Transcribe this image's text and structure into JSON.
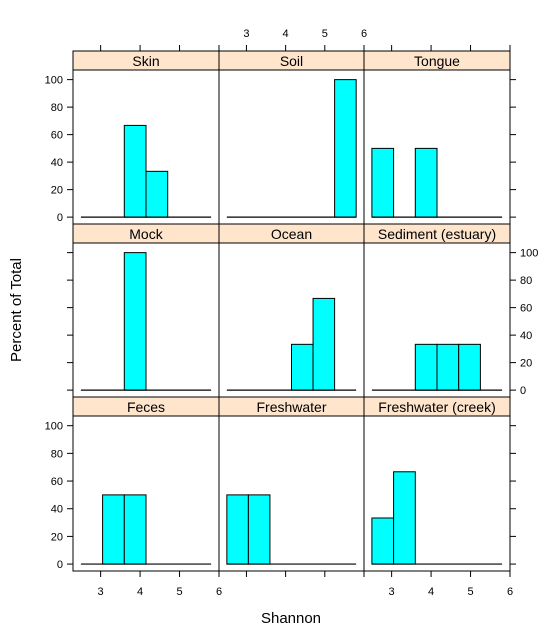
{
  "chart_data": {
    "type": "bar",
    "xlabel": "Shannon",
    "ylabel": "Percent of Total",
    "xlim": [
      2.3,
      6.0
    ],
    "ylim": [
      -5,
      107
    ],
    "x_ticks": [
      3,
      4,
      5,
      6
    ],
    "y_ticks": [
      0,
      20,
      40,
      60,
      80,
      100
    ],
    "bin_edges": [
      2.5,
      3.05,
      3.6,
      4.15,
      4.7,
      5.25,
      5.8
    ],
    "panels": [
      {
        "name": "Skin",
        "values": [
          0,
          0,
          66.7,
          33.3,
          0,
          0
        ]
      },
      {
        "name": "Soil",
        "values": [
          0,
          0,
          0,
          0,
          0,
          100
        ]
      },
      {
        "name": "Tongue",
        "values": [
          50,
          0,
          50,
          0,
          0,
          0
        ]
      },
      {
        "name": "Mock",
        "values": [
          0,
          0,
          100,
          0,
          0,
          0
        ]
      },
      {
        "name": "Ocean",
        "values": [
          0,
          0,
          0,
          33.3,
          66.7,
          0
        ]
      },
      {
        "name": "Sediment (estuary)",
        "values": [
          0,
          0,
          33.3,
          33.3,
          33.3,
          0
        ]
      },
      {
        "name": "Feces",
        "values": [
          0,
          50,
          50,
          0,
          0,
          0
        ]
      },
      {
        "name": "Freshwater",
        "values": [
          50,
          50,
          0,
          0,
          0,
          0
        ]
      },
      {
        "name": "Freshwater (creek)",
        "values": [
          33.3,
          66.7,
          0,
          0,
          0,
          0
        ]
      }
    ],
    "colors": {
      "bar_fill": "#00ffff",
      "strip_fill": "#ffe5cc"
    }
  }
}
